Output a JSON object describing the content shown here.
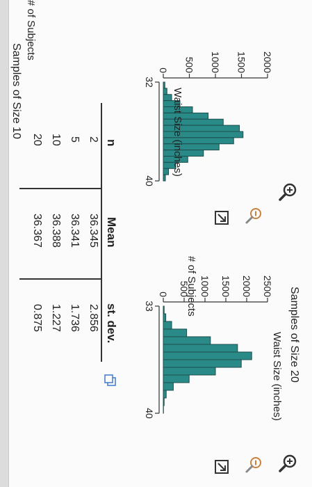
{
  "colors": {
    "bar_fill": "#2a8a87",
    "bar_stroke": "#1d4d4c",
    "icon": "#333333",
    "zoom_icon": "#c8823c"
  },
  "icons": {
    "zoom_in": "magnifier-plus-icon",
    "zoom_out": "magnifier-minus-icon",
    "expand": "expand-arrow-icon",
    "copy": "copy-icon"
  },
  "chart_data": [
    {
      "type": "bar",
      "title": "Samples of Size 10",
      "ylabel": "# of Subjects",
      "xlabel": "Waist Size (inches)",
      "x_tick_labels": [
        "32",
        "40"
      ],
      "y_tick_labels": [
        "0",
        "500",
        "1000",
        "1500",
        "2000"
      ],
      "xlim": [
        32,
        40
      ],
      "ylim": [
        0,
        2000
      ],
      "bin_width": 0.5,
      "x": [
        32,
        32.5,
        33,
        33.5,
        34,
        34.5,
        35,
        35.5,
        36,
        36.5,
        37,
        37.5,
        38,
        38.5,
        39,
        39.5
      ],
      "values": [
        30,
        70,
        160,
        320,
        560,
        860,
        1150,
        1460,
        1530,
        1350,
        1070,
        770,
        470,
        240,
        100,
        40
      ]
    },
    {
      "type": "bar",
      "title": "Samples of Size 20",
      "ylabel": "# of Subjects",
      "xlabel": "Waist Size (inches)",
      "x_tick_labels": [
        "33",
        "40"
      ],
      "y_tick_labels": [
        "0",
        "500",
        "1000",
        "1500",
        "2000",
        "2500"
      ],
      "xlim": [
        33,
        40
      ],
      "ylim": [
        0,
        2500
      ],
      "bin_width": 0.5,
      "x": [
        33,
        33.5,
        34,
        34.5,
        35,
        35.5,
        36,
        36.5,
        37,
        37.5,
        38,
        38.5,
        39,
        39.5
      ],
      "values": [
        20,
        60,
        200,
        560,
        1130,
        1780,
        2120,
        1870,
        1250,
        620,
        240,
        70,
        20,
        5
      ]
    }
  ],
  "table": {
    "headers": [
      "n",
      "Mean",
      "st. dev."
    ],
    "rows": [
      [
        "2",
        "36.345",
        "2.856"
      ],
      [
        "5",
        "36.341",
        "1.736"
      ],
      [
        "10",
        "36.388",
        "1.227"
      ],
      [
        "20",
        "36.367",
        "0.875"
      ]
    ]
  }
}
